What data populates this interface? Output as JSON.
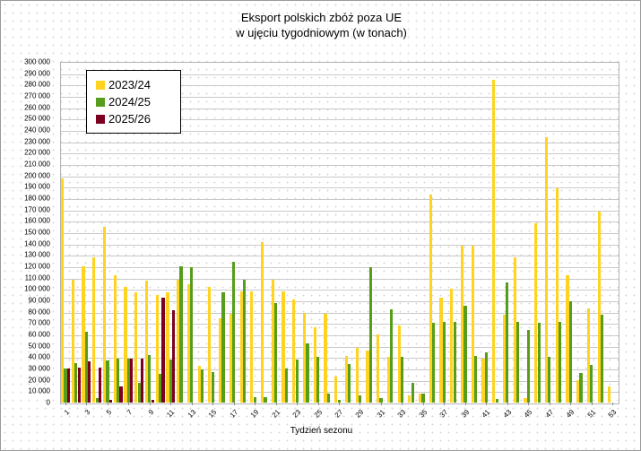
{
  "chart": {
    "title_line1": "Eksport polskich zbóż poza UE",
    "title_line2": "w ujęciu tygodniowym (w tonach)",
    "x_axis_title": "Tydzień sezonu"
  },
  "chart_data": {
    "type": "bar",
    "title": "Eksport polskich zbóż poza UE w ujęciu tygodniowym (w tonach)",
    "xlabel": "Tydzień sezonu",
    "ylabel": "",
    "ylim": [
      0,
      300000
    ],
    "ytick_step": 10000,
    "grid": true,
    "legend_position": "top-left",
    "y_number_format": "space thousands separator",
    "x_tick_labels_shown": [
      1,
      3,
      5,
      7,
      9,
      11,
      13,
      15,
      17,
      19,
      21,
      23,
      25,
      27,
      29,
      31,
      33,
      35,
      37,
      39,
      41,
      43,
      45,
      47,
      49,
      51,
      53
    ],
    "categories": [
      1,
      2,
      3,
      4,
      5,
      6,
      7,
      8,
      9,
      10,
      11,
      12,
      13,
      14,
      15,
      16,
      17,
      18,
      19,
      20,
      21,
      22,
      23,
      24,
      25,
      26,
      27,
      28,
      29,
      30,
      31,
      32,
      33,
      34,
      35,
      36,
      37,
      38,
      39,
      40,
      41,
      42,
      43,
      44,
      45,
      46,
      47,
      48,
      49,
      50,
      51,
      52,
      53
    ],
    "series": [
      {
        "name": "2023/24",
        "color": "#FFD320",
        "values": [
          197000,
          108000,
          120000,
          128000,
          155000,
          112000,
          102000,
          97000,
          107000,
          95000,
          97000,
          108000,
          104000,
          32000,
          102000,
          74000,
          78000,
          98000,
          98000,
          141000,
          108000,
          98000,
          91000,
          79000,
          66000,
          78000,
          23000,
          41000,
          48000,
          46000,
          60000,
          40000,
          68000,
          6000,
          8000,
          183000,
          92000,
          100000,
          138000,
          138000,
          39000,
          284000,
          77000,
          128000,
          4000,
          158000,
          234000,
          189000,
          112000,
          20000,
          83000,
          168000,
          14000
        ]
      },
      {
        "name": "2024/25",
        "color": "#579D1C",
        "values": [
          30000,
          35000,
          62000,
          4000,
          37000,
          39000,
          39000,
          17000,
          42000,
          25000,
          38000,
          120000,
          119000,
          29000,
          27000,
          97000,
          124000,
          108000,
          5000,
          5000,
          88000,
          30000,
          38000,
          52000,
          40000,
          8000,
          2000,
          34000,
          6000,
          119000,
          4000,
          82000,
          40000,
          17000,
          8000,
          70000,
          71000,
          71000,
          85000,
          41000,
          44000,
          3000,
          106000,
          71000,
          64000,
          70000,
          40000,
          71000,
          89000,
          26000,
          33000,
          77000,
          0
        ]
      },
      {
        "name": "2025/26",
        "color": "#7E0021",
        "values": [
          30000,
          31000,
          36000,
          31000,
          2000,
          14000,
          39000,
          39000,
          2000,
          92000,
          81000,
          0,
          0,
          0,
          0,
          0,
          0,
          0,
          0,
          0,
          0,
          0,
          0,
          0,
          0,
          0,
          0,
          0,
          0,
          0,
          0,
          0,
          0,
          0,
          0,
          0,
          0,
          0,
          0,
          0,
          0,
          0,
          0,
          0,
          0,
          0,
          0,
          0,
          0,
          0,
          0,
          0,
          0
        ]
      }
    ]
  }
}
